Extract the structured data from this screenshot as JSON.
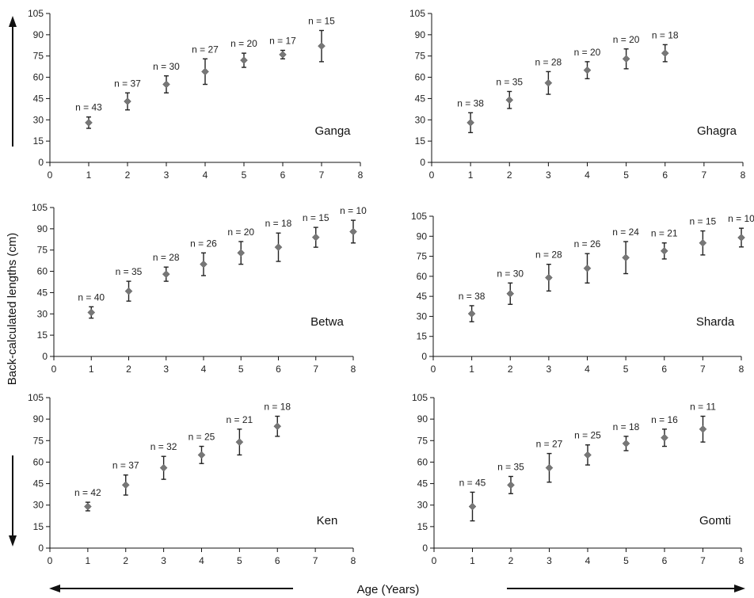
{
  "figure": {
    "ylabel": "Back-calculated lengths (cm)",
    "xlabel": "Age (Years)"
  },
  "chart_data": [
    {
      "type": "scatter",
      "panel": "Ganga",
      "xlim": [
        0,
        8
      ],
      "ylim": [
        0,
        105
      ],
      "xticks": [
        0,
        1,
        2,
        3,
        4,
        5,
        6,
        7,
        8
      ],
      "yticks": [
        0,
        15,
        30,
        45,
        60,
        75,
        90,
        105
      ],
      "points": [
        {
          "x": 1,
          "y": 28,
          "err": 4,
          "n": "n = 43"
        },
        {
          "x": 2,
          "y": 43,
          "err": 6,
          "n": "n = 37"
        },
        {
          "x": 3,
          "y": 55,
          "err": 6,
          "n": "n = 30"
        },
        {
          "x": 4,
          "y": 64,
          "err": 9,
          "n": "n = 27"
        },
        {
          "x": 5,
          "y": 72,
          "err": 5,
          "n": "n = 20"
        },
        {
          "x": 6,
          "y": 76,
          "err": 3,
          "n": "n = 17"
        },
        {
          "x": 7,
          "y": 82,
          "err": 11,
          "n": "n = 15"
        }
      ]
    },
    {
      "type": "scatter",
      "panel": "Ghagra",
      "xlim": [
        0,
        8
      ],
      "ylim": [
        0,
        105
      ],
      "xticks": [
        0,
        1,
        2,
        3,
        4,
        5,
        6,
        7,
        8
      ],
      "yticks": [
        0,
        15,
        30,
        45,
        60,
        75,
        90,
        105
      ],
      "points": [
        {
          "x": 1,
          "y": 28,
          "err": 7,
          "n": "n = 38"
        },
        {
          "x": 2,
          "y": 44,
          "err": 6,
          "n": "n = 35"
        },
        {
          "x": 3,
          "y": 56,
          "err": 8,
          "n": "n = 28"
        },
        {
          "x": 4,
          "y": 65,
          "err": 6,
          "n": "n = 20"
        },
        {
          "x": 5,
          "y": 73,
          "err": 7,
          "n": "n = 20"
        },
        {
          "x": 6,
          "y": 77,
          "err": 6,
          "n": "n = 18"
        }
      ]
    },
    {
      "type": "scatter",
      "panel": "Betwa",
      "xlim": [
        0,
        8
      ],
      "ylim": [
        0,
        105
      ],
      "xticks": [
        0,
        1,
        2,
        3,
        4,
        5,
        6,
        7,
        8
      ],
      "yticks": [
        0,
        15,
        30,
        45,
        60,
        75,
        90,
        105
      ],
      "points": [
        {
          "x": 1,
          "y": 31,
          "err": 4,
          "n": "n = 40"
        },
        {
          "x": 2,
          "y": 46,
          "err": 7,
          "n": "n = 35"
        },
        {
          "x": 3,
          "y": 58,
          "err": 5,
          "n": "n = 28"
        },
        {
          "x": 4,
          "y": 65,
          "err": 8,
          "n": "n = 26"
        },
        {
          "x": 5,
          "y": 73,
          "err": 8,
          "n": "n = 20"
        },
        {
          "x": 6,
          "y": 77,
          "err": 10,
          "n": "n = 18"
        },
        {
          "x": 7,
          "y": 84,
          "err": 7,
          "n": "n = 15"
        },
        {
          "x": 8,
          "y": 88,
          "err": 8,
          "n": "n = 10"
        }
      ]
    },
    {
      "type": "scatter",
      "panel": "Sharda",
      "xlim": [
        0,
        8
      ],
      "ylim": [
        0,
        105
      ],
      "xticks": [
        0,
        1,
        2,
        3,
        4,
        5,
        6,
        7,
        8
      ],
      "yticks": [
        0,
        15,
        30,
        45,
        60,
        75,
        90,
        105
      ],
      "points": [
        {
          "x": 1,
          "y": 32,
          "err": 6,
          "n": "n = 38"
        },
        {
          "x": 2,
          "y": 47,
          "err": 8,
          "n": "n = 30"
        },
        {
          "x": 3,
          "y": 59,
          "err": 10,
          "n": "n = 28"
        },
        {
          "x": 4,
          "y": 66,
          "err": 11,
          "n": "n = 26"
        },
        {
          "x": 5,
          "y": 74,
          "err": 12,
          "n": "n = 24"
        },
        {
          "x": 6,
          "y": 79,
          "err": 6,
          "n": "n = 21"
        },
        {
          "x": 7,
          "y": 85,
          "err": 9,
          "n": "n = 15"
        },
        {
          "x": 8,
          "y": 89,
          "err": 7,
          "n": "n = 10"
        }
      ]
    },
    {
      "type": "scatter",
      "panel": "Ken",
      "xlim": [
        0,
        8
      ],
      "ylim": [
        0,
        105
      ],
      "xticks": [
        0,
        1,
        2,
        3,
        4,
        5,
        6,
        7,
        8
      ],
      "yticks": [
        0,
        15,
        30,
        45,
        60,
        75,
        90,
        105
      ],
      "points": [
        {
          "x": 1,
          "y": 29,
          "err": 3,
          "n": "n = 42"
        },
        {
          "x": 2,
          "y": 44,
          "err": 7,
          "n": "n = 37"
        },
        {
          "x": 3,
          "y": 56,
          "err": 8,
          "n": "n = 32"
        },
        {
          "x": 4,
          "y": 65,
          "err": 6,
          "n": "n = 25"
        },
        {
          "x": 5,
          "y": 74,
          "err": 9,
          "n": "n = 21"
        },
        {
          "x": 6,
          "y": 85,
          "err": 7,
          "n": "n = 18"
        }
      ]
    },
    {
      "type": "scatter",
      "panel": "Gomti",
      "xlim": [
        0,
        8
      ],
      "ylim": [
        0,
        105
      ],
      "xticks": [
        0,
        1,
        2,
        3,
        4,
        5,
        6,
        7,
        8
      ],
      "yticks": [
        0,
        15,
        30,
        45,
        60,
        75,
        90,
        105
      ],
      "points": [
        {
          "x": 1,
          "y": 29,
          "err": 10,
          "n": "n = 45"
        },
        {
          "x": 2,
          "y": 44,
          "err": 6,
          "n": "n = 35"
        },
        {
          "x": 3,
          "y": 56,
          "err": 10,
          "n": "n = 27"
        },
        {
          "x": 4,
          "y": 65,
          "err": 7,
          "n": "n = 25"
        },
        {
          "x": 5,
          "y": 73,
          "err": 5,
          "n": "n = 18"
        },
        {
          "x": 6,
          "y": 77,
          "err": 6,
          "n": "n = 16"
        },
        {
          "x": 7,
          "y": 83,
          "err": 9,
          "n": "n = 11"
        }
      ]
    }
  ]
}
